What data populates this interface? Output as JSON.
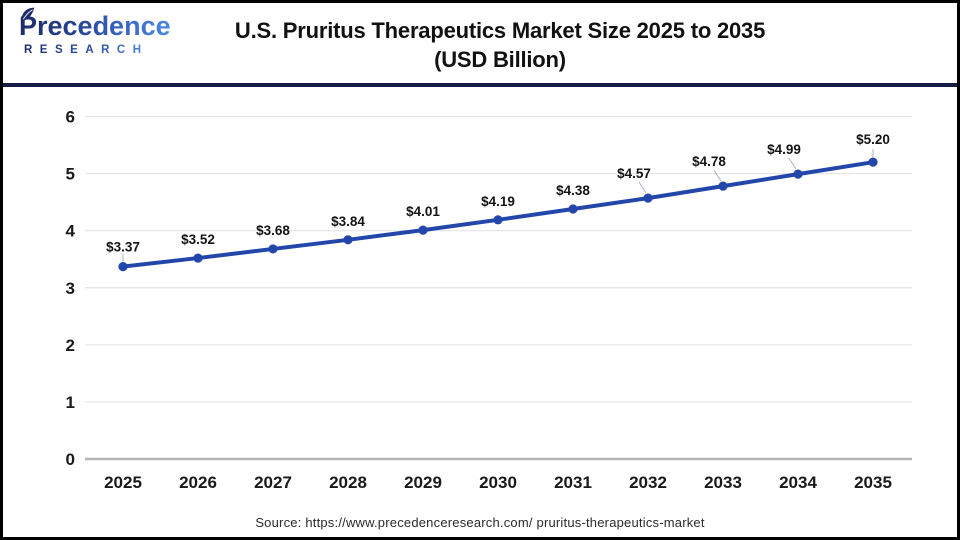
{
  "header": {
    "logo": {
      "brand": "Precedence",
      "sub": "RESEARCH"
    },
    "title_line1": "U.S. Pruritus Therapeutics Market Size 2025 to 2035",
    "title_line2": "(USD Billion)"
  },
  "footer": {
    "source": "Source: https://www.precedenceresearch.com/ pruritus-therapeutics-market"
  },
  "colors": {
    "line": "#2346ab",
    "marker": "#2346ab",
    "grid": "#e5e5e5",
    "axis_zero": "#b5b5b5",
    "leader": "#a9b2c2",
    "divider_navy": "#141b47",
    "logo_navy": "#1d2a6b",
    "logo_blue": "#4b87e2",
    "text": "#111111"
  },
  "chart_data": {
    "type": "line",
    "title": "U.S. Pruritus Therapeutics Market Size 2025 to 2035 (USD Billion)",
    "categories": [
      "2025",
      "2026",
      "2027",
      "2028",
      "2029",
      "2030",
      "2031",
      "2032",
      "2033",
      "2034",
      "2035"
    ],
    "values": [
      3.37,
      3.52,
      3.68,
      3.84,
      4.01,
      4.19,
      4.38,
      4.57,
      4.78,
      4.99,
      5.2
    ],
    "labels": [
      "$3.37",
      "$3.52",
      "$3.68",
      "$3.84",
      "$4.01",
      "$4.19",
      "$4.38",
      "$4.57",
      "$4.78",
      "$4.99",
      "$5.20"
    ],
    "xlabel": "",
    "ylabel": "",
    "ylim": [
      0,
      6
    ],
    "y_ticks": [
      0,
      1,
      2,
      3,
      4,
      5,
      6
    ],
    "grid": true,
    "legend": false,
    "series_name": "U.S. Pruritus Therapeutics Market Size (USD Billion)"
  }
}
